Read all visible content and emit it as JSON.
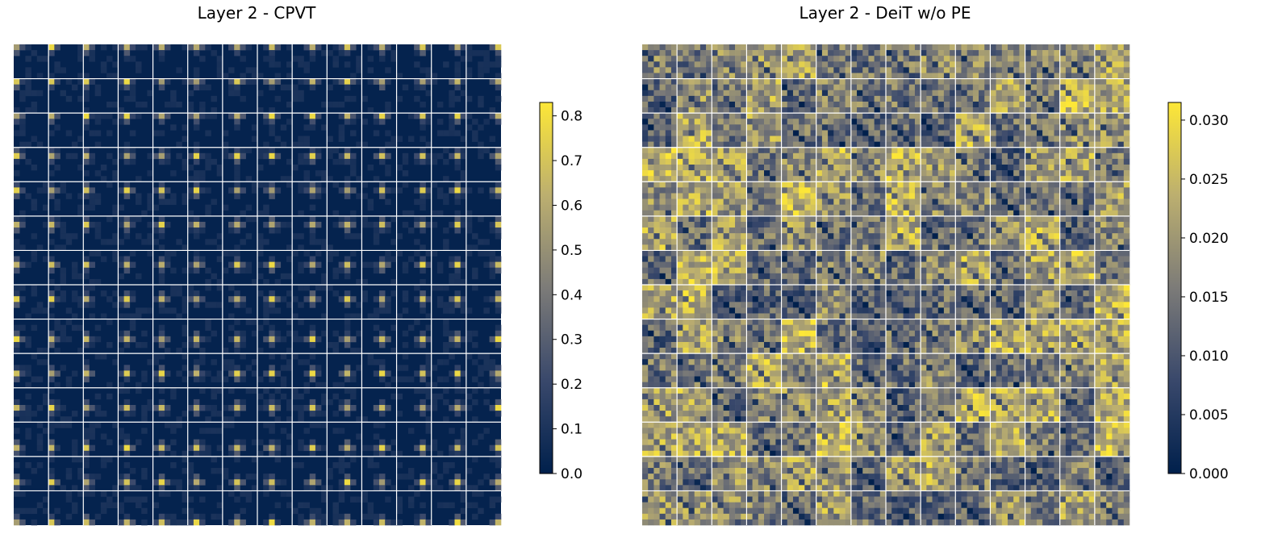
{
  "colors": {
    "colormap": "cividis",
    "low": "#00204c",
    "mid": "#7c7b78",
    "high": "#fde737",
    "grid_line": "#ffffff"
  },
  "chart_data": [
    {
      "type": "heatmap",
      "title": "Layer 2 - CPVT",
      "grid": {
        "rows": 14,
        "cols": 14
      },
      "colorbar": {
        "colormap": "cividis",
        "vmin": 0.0,
        "vmax": 0.83,
        "ticks": [
          0.0,
          0.1,
          0.2,
          0.3,
          0.4,
          0.5,
          0.6,
          0.7,
          0.8
        ],
        "tick_labels": [
          "0.0",
          "0.1",
          "0.2",
          "0.3",
          "0.4",
          "0.5",
          "0.6",
          "0.7",
          "0.8"
        ]
      }
    },
    {
      "type": "heatmap",
      "title": "Layer 2 - DeiT w/o PE",
      "grid": {
        "rows": 14,
        "cols": 14
      },
      "colorbar": {
        "colormap": "cividis",
        "vmin": 0.0,
        "vmax": 0.0315,
        "ticks": [
          0.0,
          0.005,
          0.01,
          0.015,
          0.02,
          0.025,
          0.03
        ],
        "tick_labels": [
          "0.000",
          "0.005",
          "0.010",
          "0.015",
          "0.020",
          "0.025",
          "0.030"
        ]
      }
    }
  ]
}
